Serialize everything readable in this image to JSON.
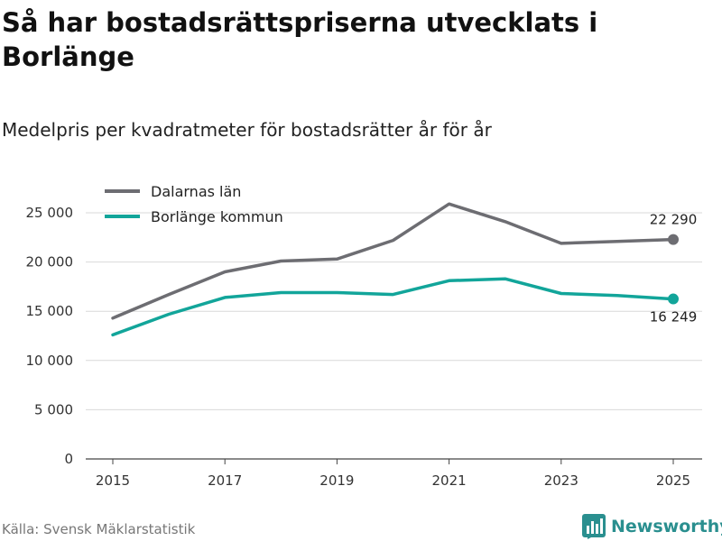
{
  "header": {
    "title": "Så har bostadsrättspriserna utvecklats i Borlänge",
    "subtitle": "Medelpris per kvadratmeter för bostadsrätter år för år"
  },
  "footer": {
    "source": "Källa: Svensk Mäklarstatistik",
    "brand": "Newsworthy"
  },
  "colors": {
    "dalarna": "#6d6d72",
    "borlange": "#12a59a",
    "grid": "#d9d9d9",
    "brand": "#2a8f8f"
  },
  "chart_data": {
    "type": "line",
    "title": "Så har bostadsrättspriserna utvecklats i Borlänge",
    "subtitle": "Medelpris per kvadratmeter för bostadsrätter år för år",
    "xlabel": "",
    "ylabel": "",
    "x": [
      2015,
      2016,
      2017,
      2018,
      2019,
      2020,
      2021,
      2022,
      2023,
      2024,
      2025
    ],
    "xticks": [
      "2015",
      "2017",
      "2019",
      "2021",
      "2023",
      "2025"
    ],
    "xtick_values": [
      2015,
      2017,
      2019,
      2021,
      2023,
      2025
    ],
    "ylim": [
      0,
      25000
    ],
    "yticks": [
      0,
      5000,
      10000,
      15000,
      20000,
      25000
    ],
    "ytick_labels": [
      "0",
      "5 000",
      "10 000",
      "15 000",
      "20 000",
      "25 000"
    ],
    "grid": true,
    "legend_position": "top-left",
    "series": [
      {
        "name": "Dalarnas län",
        "key": "dalarna",
        "values": [
          14300,
          16700,
          19000,
          20100,
          20300,
          22200,
          25900,
          24100,
          21900,
          22100,
          22290
        ],
        "end_label": "22 290",
        "end_label_position": "above"
      },
      {
        "name": "Borlänge kommun",
        "key": "borlange",
        "values": [
          12600,
          14700,
          16400,
          16900,
          16900,
          16700,
          18100,
          18300,
          16800,
          16600,
          16249
        ],
        "end_label": "16 249",
        "end_label_position": "below"
      }
    ]
  }
}
